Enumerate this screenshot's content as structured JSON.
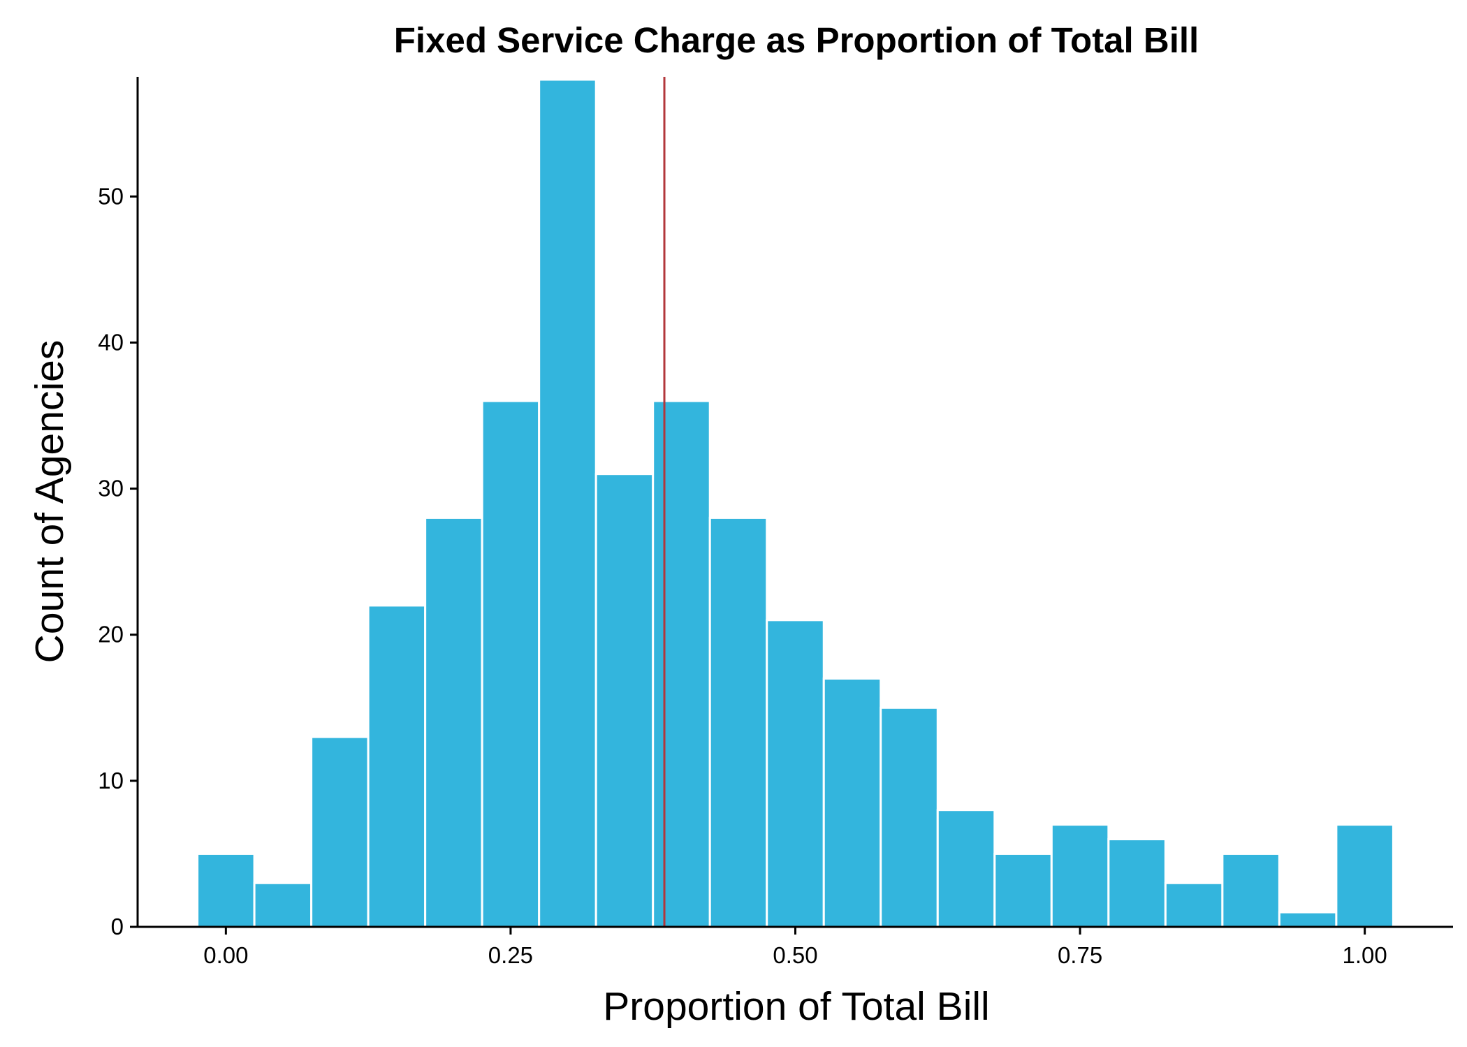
{
  "chart_data": {
    "type": "bar",
    "title": "Fixed Service Charge as Proportion of Total Bill",
    "xlabel": "Proportion of Total Bill",
    "ylabel": "Count of Agencies",
    "bin_width": 0.05,
    "bin_centers": [
      0.0,
      0.05,
      0.1,
      0.15,
      0.2,
      0.25,
      0.3,
      0.35,
      0.4,
      0.45,
      0.5,
      0.55,
      0.6,
      0.65,
      0.7,
      0.75,
      0.8,
      0.85,
      0.9,
      0.95,
      1.0
    ],
    "values": [
      5,
      3,
      13,
      22,
      28,
      36,
      58,
      31,
      36,
      28,
      21,
      17,
      15,
      8,
      5,
      7,
      6,
      3,
      5,
      1,
      7
    ],
    "xlim": [
      -0.0775,
      1.0775
    ],
    "ylim": [
      0,
      58
    ],
    "x_ticks": [
      0.0,
      0.25,
      0.5,
      0.75,
      1.0
    ],
    "x_tick_labels": [
      "0.00",
      "0.25",
      "0.50",
      "0.75",
      "1.00"
    ],
    "y_ticks": [
      0,
      10,
      20,
      30,
      40,
      50
    ],
    "y_tick_labels": [
      "0",
      "10",
      "20",
      "30",
      "40",
      "50"
    ],
    "reference_line": {
      "x": 0.385,
      "color": "#b2373c"
    },
    "bar_color": "#33b5dd",
    "bar_outline_color": "#ffffff",
    "grid": false,
    "legend": "none"
  }
}
